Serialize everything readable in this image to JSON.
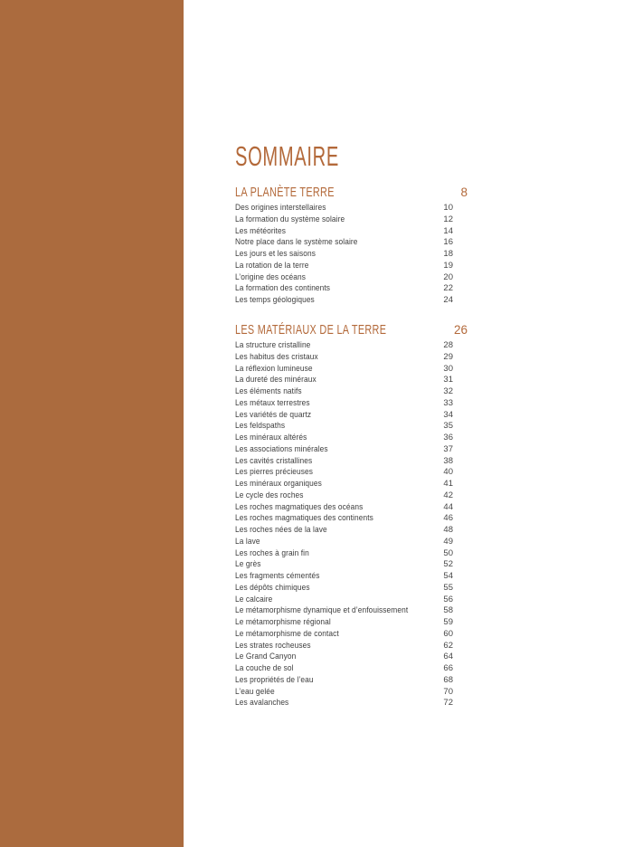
{
  "page_title": "SOMMAIRE",
  "colors": {
    "sidebar_band": "#AB6B3E",
    "accent": "#B3693A",
    "body_text": "#3D3D3D"
  },
  "sections": [
    {
      "title": "LA PLANÈTE TERRE",
      "page": "8",
      "entries": [
        {
          "label": "Des origines interstellaires",
          "page": "10"
        },
        {
          "label": "La formation du système solaire",
          "page": "12"
        },
        {
          "label": "Les météorites",
          "page": "14"
        },
        {
          "label": "Notre place dans le système solaire",
          "page": "16"
        },
        {
          "label": "Les jours et les saisons",
          "page": "18"
        },
        {
          "label": "La rotation de la terre",
          "page": "19"
        },
        {
          "label": "L’origine des océans",
          "page": "20"
        },
        {
          "label": "La formation des continents",
          "page": "22"
        },
        {
          "label": "Les temps géologiques",
          "page": "24"
        }
      ]
    },
    {
      "title": "LES MATÉRIAUX DE LA TERRE",
      "page": "26",
      "entries": [
        {
          "label": "La structure cristalline",
          "page": "28"
        },
        {
          "label": "Les habitus des cristaux",
          "page": "29"
        },
        {
          "label": "La réflexion lumineuse",
          "page": "30"
        },
        {
          "label": "La dureté des minéraux",
          "page": "31"
        },
        {
          "label": "Les éléments natifs",
          "page": "32"
        },
        {
          "label": "Les métaux terrestres",
          "page": "33"
        },
        {
          "label": "Les variétés de quartz",
          "page": "34"
        },
        {
          "label": "Les feldspaths",
          "page": "35"
        },
        {
          "label": "Les minéraux altérés",
          "page": "36"
        },
        {
          "label": "Les associations minérales",
          "page": "37"
        },
        {
          "label": "Les cavités cristallines",
          "page": "38"
        },
        {
          "label": "Les pierres précieuses",
          "page": "40"
        },
        {
          "label": "Les minéraux organiques",
          "page": "41"
        },
        {
          "label": "Le cycle des roches",
          "page": "42"
        },
        {
          "label": "Les roches magmatiques des océans",
          "page": "44"
        },
        {
          "label": "Les roches magmatiques des continents",
          "page": "46"
        },
        {
          "label": "Les roches nées de la lave",
          "page": "48"
        },
        {
          "label": "La lave",
          "page": "49"
        },
        {
          "label": "Les roches à grain fin",
          "page": "50"
        },
        {
          "label": "Le grès",
          "page": "52"
        },
        {
          "label": "Les fragments cémentés",
          "page": "54"
        },
        {
          "label": "Les dépôts chimiques",
          "page": "55"
        },
        {
          "label": "Le calcaire",
          "page": "56"
        },
        {
          "label": "Le métamorphisme dynamique et d’enfouissement",
          "page": "58"
        },
        {
          "label": "Le métamorphisme régional",
          "page": "59"
        },
        {
          "label": "Le métamorphisme de contact",
          "page": "60"
        },
        {
          "label": "Les strates rocheuses",
          "page": "62"
        },
        {
          "label": "Le Grand Canyon",
          "page": "64"
        },
        {
          "label": "La couche de sol",
          "page": "66"
        },
        {
          "label": "Les propriétés de l’eau",
          "page": "68"
        },
        {
          "label": "L’eau gelée",
          "page": "70"
        },
        {
          "label": "Les avalanches",
          "page": "72"
        }
      ]
    }
  ]
}
